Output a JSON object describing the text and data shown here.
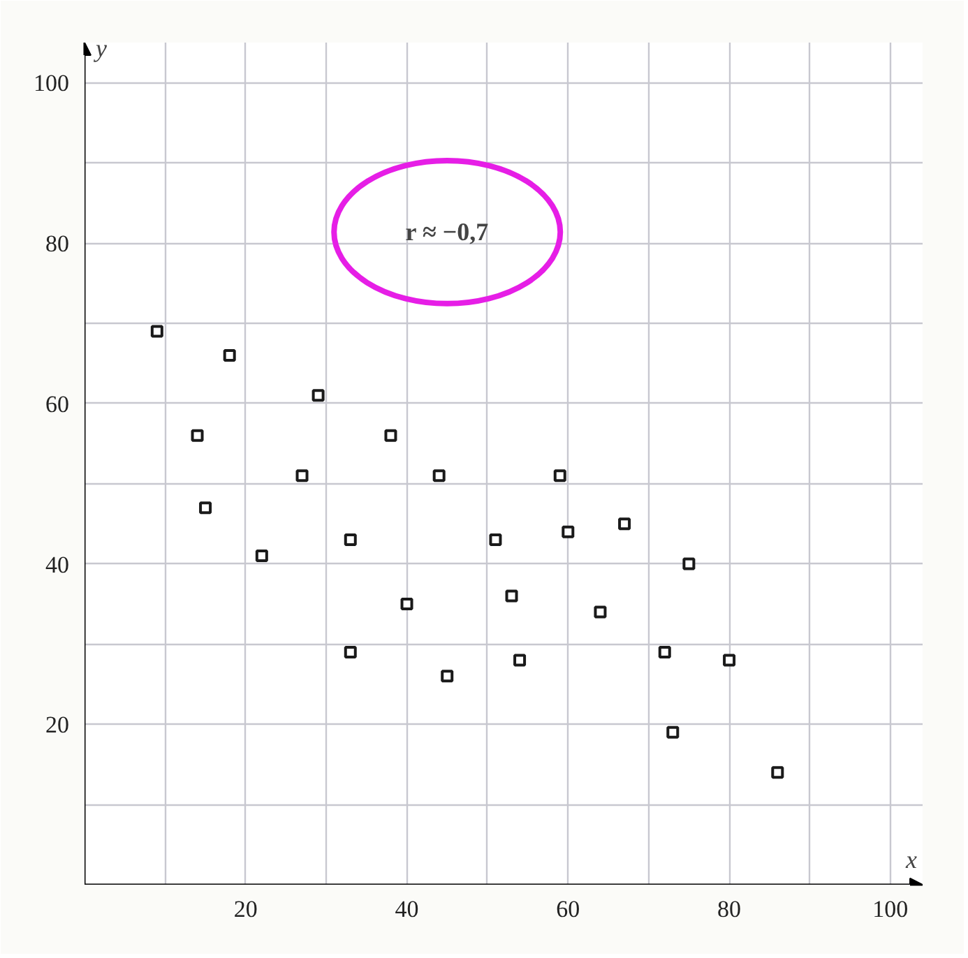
{
  "chart_data": {
    "type": "scatter",
    "xlabel": "x",
    "ylabel": "y",
    "annotations": [
      "r ≈ −0,7"
    ],
    "x": [
      9,
      14,
      15,
      18,
      22,
      27,
      29,
      33,
      33,
      38,
      40,
      44,
      45,
      51,
      53,
      54,
      59,
      60,
      64,
      67,
      72,
      73,
      75,
      80,
      86
    ],
    "values": [
      69,
      56,
      47,
      66,
      41,
      51,
      61,
      43,
      29,
      56,
      35,
      51,
      26,
      43,
      36,
      28,
      51,
      44,
      34,
      45,
      29,
      19,
      40,
      28,
      14
    ],
    "color": "#1a1a1a",
    "marker": "square",
    "grid": true,
    "xlim": [
      0,
      104
    ],
    "ylim": [
      0,
      105
    ],
    "xticks": [
      {
        "value": 10,
        "label": null
      },
      20,
      {
        "value": 30,
        "label": null
      },
      40,
      {
        "value": 50,
        "label": null
      },
      60,
      {
        "value": 70,
        "label": null
      },
      80,
      {
        "value": 90,
        "label": null
      },
      100
    ],
    "yticks": [
      {
        "value": 10,
        "label": null
      },
      20,
      {
        "value": 30,
        "label": null
      },
      40,
      {
        "value": 50,
        "label": null
      },
      60,
      {
        "value": 70,
        "label": null
      },
      80,
      {
        "value": 90,
        "label": null
      },
      100
    ]
  }
}
